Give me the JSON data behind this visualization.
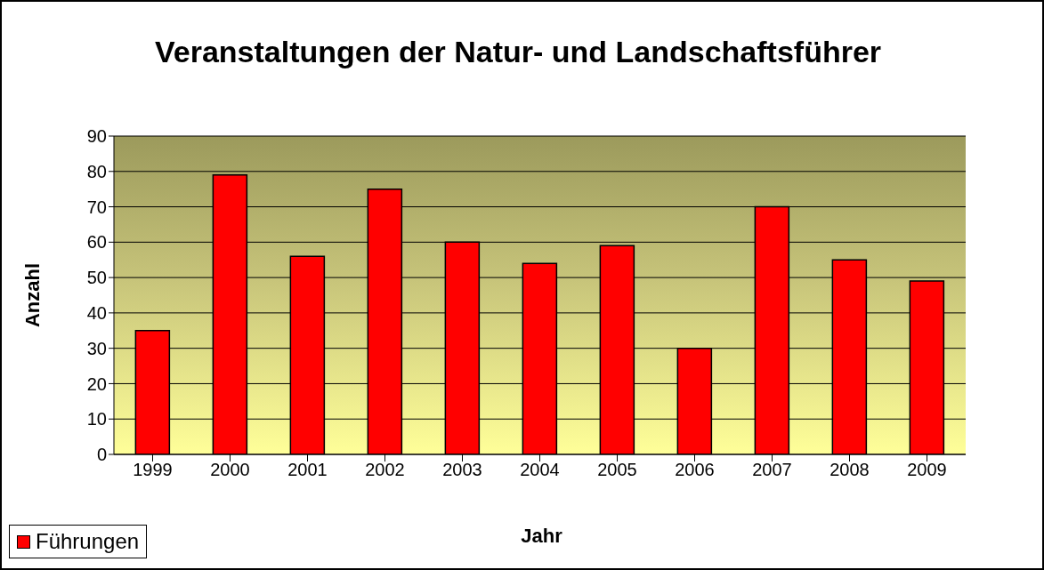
{
  "chart_data": {
    "type": "bar",
    "title": "Veranstaltungen der Natur- und Landschaftsführer",
    "xlabel": "Jahr",
    "ylabel": "Anzahl",
    "categories": [
      "1999",
      "2000",
      "2001",
      "2002",
      "2003",
      "2004",
      "2005",
      "2006",
      "2007",
      "2008",
      "2009"
    ],
    "series": [
      {
        "name": "Führungen",
        "color": "#ff0000",
        "values": [
          35,
          79,
          56,
          75,
          60,
          54,
          59,
          30,
          70,
          55,
          49
        ]
      }
    ],
    "ylim": [
      0,
      90
    ],
    "yticks": [
      0,
      10,
      20,
      30,
      40,
      50,
      60,
      70,
      80,
      90
    ],
    "grid": "y",
    "legend": "bottom left"
  }
}
